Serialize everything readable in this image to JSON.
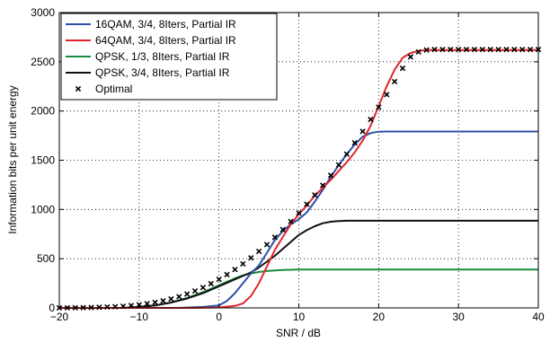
{
  "chart_data": {
    "type": "line",
    "title": "",
    "xlabel": "SNR / dB",
    "ylabel": "Information bits per unit energy",
    "xlim": [
      -20,
      40
    ],
    "ylim": [
      0,
      3000
    ],
    "xticks": [
      -20,
      -10,
      0,
      10,
      20,
      30,
      40
    ],
    "yticks": [
      0,
      500,
      1000,
      1500,
      2000,
      2500,
      3000
    ],
    "xtick_labels": [
      "−20",
      "−10",
      "0",
      "10",
      "20",
      "30",
      "40"
    ],
    "ytick_labels": [
      "0",
      "500",
      "1000",
      "1500",
      "2000",
      "2500",
      "3000"
    ],
    "grid": true,
    "legend_position": "top-left",
    "series": [
      {
        "name": "16QAM, 3/4, 8Iters, Partial IR",
        "color": "#2c4fa6",
        "x": [
          -20,
          -5,
          -2,
          0,
          1,
          2,
          3,
          4,
          5,
          6,
          7,
          8,
          9,
          10,
          11,
          12,
          13,
          14,
          15,
          16,
          17,
          18,
          19,
          20,
          21,
          22,
          40
        ],
        "y": [
          0,
          0,
          10,
          25,
          70,
          150,
          250,
          350,
          430,
          560,
          690,
          780,
          850,
          900,
          970,
          1080,
          1200,
          1330,
          1450,
          1560,
          1660,
          1740,
          1775,
          1790,
          1792,
          1792,
          1792
        ]
      },
      {
        "name": "64QAM, 3/4, 8Iters, Partial IR",
        "color": "#e0262c",
        "x": [
          -20,
          -3,
          0,
          2,
          3,
          4,
          5,
          6,
          7,
          8,
          9,
          10,
          11,
          12,
          13,
          14,
          15,
          16,
          17,
          18,
          19,
          20,
          21,
          22,
          23,
          24,
          25,
          26,
          40
        ],
        "y": [
          0,
          0,
          5,
          20,
          45,
          120,
          250,
          420,
          590,
          720,
          850,
          950,
          1040,
          1140,
          1220,
          1300,
          1390,
          1480,
          1580,
          1700,
          1850,
          2050,
          2250,
          2420,
          2540,
          2590,
          2610,
          2620,
          2620
        ]
      },
      {
        "name": "QPSK, 1/3, 8Iters, Partial IR",
        "color": "#1a8a3c",
        "x": [
          -20,
          -12,
          -10,
          -8,
          -6,
          -4,
          -2,
          0,
          2,
          3,
          4,
          5,
          6,
          8,
          10,
          40
        ],
        "y": [
          0,
          0,
          10,
          25,
          55,
          100,
          160,
          230,
          300,
          330,
          350,
          365,
          375,
          385,
          390,
          390
        ]
      },
      {
        "name": "QPSK, 3/4, 8Iters, Partial IR",
        "color": "#111111",
        "x": [
          -20,
          -12,
          -10,
          -8,
          -6,
          -4,
          -2,
          0,
          2,
          4,
          5,
          6,
          7,
          8,
          9,
          10,
          11,
          12,
          13,
          14,
          15,
          16,
          40
        ],
        "y": [
          0,
          0,
          10,
          25,
          55,
          95,
          150,
          220,
          290,
          360,
          410,
          470,
          530,
          600,
          670,
          740,
          790,
          830,
          860,
          875,
          882,
          885,
          885
        ]
      }
    ],
    "markers": {
      "name": "Optimal",
      "symbol": "x",
      "color": "#000000",
      "x": [
        -20,
        -19,
        -18,
        -17,
        -16,
        -15,
        -14,
        -13,
        -12,
        -11,
        -10,
        -9,
        -8,
        -7,
        -6,
        -5,
        -4,
        -3,
        -2,
        -1,
        0,
        1,
        2,
        3,
        4,
        5,
        6,
        7,
        8,
        9,
        10,
        11,
        12,
        13,
        14,
        15,
        16,
        17,
        18,
        19,
        20,
        21,
        22,
        23,
        24,
        25,
        26,
        27,
        28,
        29,
        30,
        31,
        32,
        33,
        34,
        35,
        36,
        37,
        38,
        39,
        40
      ],
      "y": [
        0,
        1,
        2,
        3,
        4,
        6,
        9,
        12,
        17,
        24,
        32,
        43,
        56,
        72,
        91,
        114,
        141,
        172,
        207,
        246,
        290,
        338,
        390,
        447,
        508,
        574,
        643,
        717,
        795,
        877,
        963,
        1053,
        1147,
        1245,
        1347,
        1453,
        1562,
        1676,
        1793,
        1914,
        2039,
        2167,
        2299,
        2434,
        2550,
        2600,
        2620,
        2625,
        2625,
        2625,
        2625,
        2625,
        2625,
        2625,
        2625,
        2625,
        2625,
        2625,
        2625,
        2625,
        2625
      ]
    }
  }
}
